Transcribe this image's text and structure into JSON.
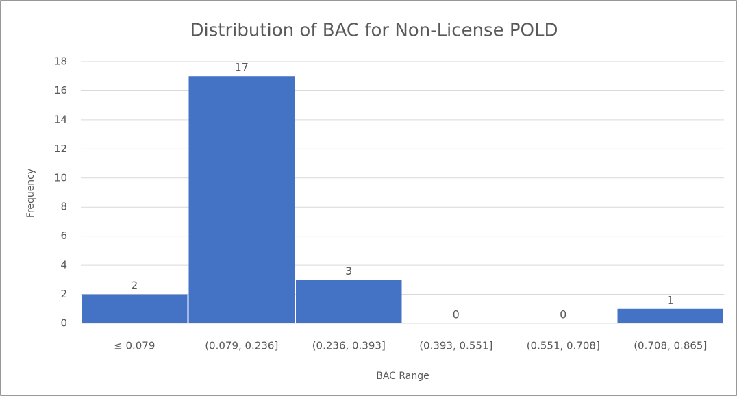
{
  "chart_data": {
    "type": "bar",
    "title": "Distribution of BAC for Non-License POLD",
    "x_label": "BAC Range",
    "y_label": "Frequency",
    "categories": [
      "≤ 0.079",
      "(0.079, 0.236]",
      "(0.236, 0.393]",
      "(0.393, 0.551]",
      "(0.551, 0.708]",
      "(0.708, 0.865]"
    ],
    "values": [
      2,
      17,
      3,
      0,
      0,
      1
    ],
    "color": "#4472c4",
    "ylim": [
      0,
      18
    ],
    "yticks": [
      0,
      2,
      4,
      6,
      8,
      10,
      12,
      14,
      16,
      18
    ],
    "grid": true
  }
}
